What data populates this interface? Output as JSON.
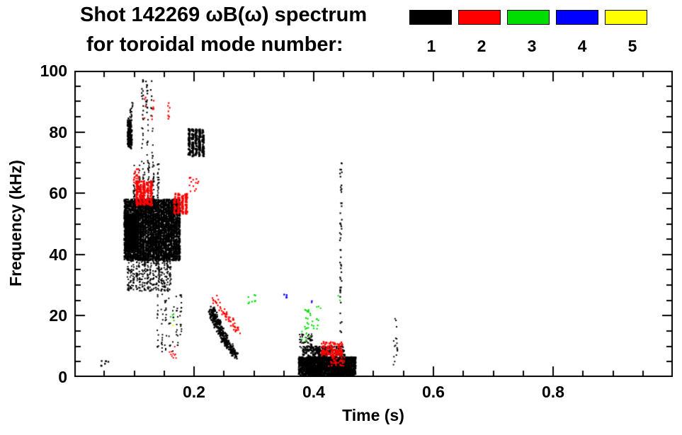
{
  "chart_data": {
    "type": "scatter",
    "title": "Shot 142269 ωB(ω) spectrum",
    "subtitle": "for toroidal mode number:",
    "xlabel": "Time (s)",
    "ylabel": "Frequency (kHz)",
    "xlim": [
      0.0,
      1.0
    ],
    "ylim": [
      0,
      100
    ],
    "grid": false,
    "xticks": {
      "major": [
        0.2,
        0.4,
        0.6,
        0.8
      ],
      "labels": [
        "0.2",
        "0.4",
        "0.6",
        "0.8"
      ],
      "minor_step": 0.05
    },
    "yticks": {
      "major": [
        0,
        20,
        40,
        60,
        80,
        100
      ],
      "labels": [
        "0",
        "20",
        "40",
        "60",
        "80",
        "100"
      ],
      "minor_step": 5
    },
    "legend": {
      "position": "top-right",
      "entries": [
        {
          "label": "1",
          "color": "#000000"
        },
        {
          "label": "2",
          "color": "#ff0000"
        },
        {
          "label": "3",
          "color": "#00dd00"
        },
        {
          "label": "4",
          "color": "#0000ff"
        },
        {
          "label": "5",
          "color": "#ffff00"
        }
      ]
    },
    "series": [
      {
        "name": "toroidal mode n=1",
        "color": "#000000",
        "clusters": [
          {
            "shape": "blob",
            "x": [
              0.041,
              0.057
            ],
            "y": [
              3,
              5.5
            ],
            "n": 7,
            "r": 1.2
          },
          {
            "shape": "line",
            "from": [
              0.0925,
              75
            ],
            "to": [
              0.0925,
              84
            ],
            "n": 130,
            "jx": 0.0035,
            "jy": 0.8,
            "r": 1.3
          },
          {
            "shape": "line",
            "from": [
              0.094,
              84
            ],
            "to": [
              0.096,
              89
            ],
            "n": 18,
            "jx": 0.002,
            "jy": 1.2,
            "r": 1
          },
          {
            "shape": "blob",
            "x": [
              0.114,
              0.128
            ],
            "y": [
              85,
              97
            ],
            "n": 34,
            "vstripes": 3,
            "r": 1.1
          },
          {
            "shape": "blob",
            "x": [
              0.114,
              0.131
            ],
            "y": [
              70,
              85
            ],
            "n": 28,
            "vstripes": 3,
            "r": 1
          },
          {
            "shape": "blob",
            "x": [
              0.085,
              0.175
            ],
            "y": [
              38,
              58
            ],
            "n": 3800,
            "vstripes": 22,
            "r": 1.2
          },
          {
            "shape": "blob",
            "x": [
              0.086,
              0.106
            ],
            "y": [
              41,
              53
            ],
            "n": 1400,
            "r": 1.5
          },
          {
            "shape": "blob",
            "x": [
              0.09,
              0.16
            ],
            "y": [
              28,
              40
            ],
            "n": 420,
            "vstripes": 16,
            "r": 1
          },
          {
            "shape": "blob",
            "x": [
              0.1,
              0.14
            ],
            "y": [
              58,
              70
            ],
            "n": 110,
            "vstripes": 6,
            "r": 1
          },
          {
            "shape": "blob",
            "x": [
              0.192,
              0.215
            ],
            "y": [
              72,
              81
            ],
            "n": 260,
            "vstripes": 5,
            "r": 1.3
          },
          {
            "shape": "blob",
            "x": [
              0.14,
              0.178
            ],
            "y": [
              8,
              27
            ],
            "n": 85,
            "vstripes": 7,
            "r": 1
          },
          {
            "shape": "line",
            "from": [
              0.228,
              22
            ],
            "to": [
              0.252,
              12
            ],
            "n": 200,
            "jx": 0.005,
            "jy": 1.6,
            "r": 1.2
          },
          {
            "shape": "line",
            "from": [
              0.252,
              12
            ],
            "to": [
              0.27,
              7
            ],
            "n": 120,
            "jx": 0.004,
            "jy": 1.2,
            "r": 1.1
          },
          {
            "shape": "blob",
            "x": [
              0.375,
              0.47
            ],
            "y": [
              0.5,
              6.5
            ],
            "n": 1600,
            "r": 1.3
          },
          {
            "shape": "blob",
            "x": [
              0.382,
              0.452
            ],
            "y": [
              5,
              10
            ],
            "n": 330,
            "r": 1.2
          },
          {
            "shape": "blob",
            "x": [
              0.376,
              0.4
            ],
            "y": [
              9,
              14
            ],
            "n": 55,
            "r": 1
          },
          {
            "shape": "line",
            "from": [
              0.4455,
              70
            ],
            "to": [
              0.4455,
              14
            ],
            "n": 50,
            "jx": 0.0018,
            "jy": 1.5,
            "r": 1.1
          },
          {
            "shape": "blob",
            "x": [
              0.532,
              0.54
            ],
            "y": [
              1.5,
              13
            ],
            "n": 14,
            "r": 1
          },
          {
            "shape": "blob",
            "x": [
              0.534,
              0.539
            ],
            "y": [
              14,
              21
            ],
            "n": 3,
            "r": 1
          }
        ]
      },
      {
        "name": "toroidal mode n=2",
        "color": "#ff0000",
        "clusters": [
          {
            "shape": "blob",
            "x": [
              0.105,
              0.128
            ],
            "y": [
              56,
              64
            ],
            "n": 240,
            "vstripes": 5,
            "r": 1.3
          },
          {
            "shape": "blob",
            "x": [
              0.099,
              0.109
            ],
            "y": [
              63,
              68
            ],
            "n": 26,
            "r": 1.1
          },
          {
            "shape": "blob",
            "x": [
              0.168,
              0.187
            ],
            "y": [
              53,
              60
            ],
            "n": 150,
            "vstripes": 4,
            "r": 1.3
          },
          {
            "shape": "blob",
            "x": [
              0.118,
              0.158
            ],
            "y": [
              84,
              92
            ],
            "n": 18,
            "vstripes": 4,
            "r": 1.1
          },
          {
            "shape": "blob",
            "x": [
              0.192,
              0.208
            ],
            "y": [
              60,
              66
            ],
            "n": 14,
            "r": 1.1
          },
          {
            "shape": "line",
            "from": [
              0.232,
              26
            ],
            "to": [
              0.274,
              15
            ],
            "n": 60,
            "jx": 0.004,
            "jy": 1.3,
            "r": 1.1
          },
          {
            "shape": "blob",
            "x": [
              0.413,
              0.448
            ],
            "y": [
              7,
              11.5
            ],
            "n": 130,
            "r": 1.2
          },
          {
            "shape": "blob",
            "x": [
              0.425,
              0.452
            ],
            "y": [
              3.5,
              7
            ],
            "n": 40,
            "r": 1.1
          },
          {
            "shape": "blob",
            "x": [
              0.158,
              0.17
            ],
            "y": [
              6,
              10
            ],
            "n": 10,
            "r": 1
          }
        ]
      },
      {
        "name": "toroidal mode n=3",
        "color": "#00dd00",
        "clusters": [
          {
            "shape": "blob",
            "x": [
              0.29,
              0.303
            ],
            "y": [
              24,
              27
            ],
            "n": 8,
            "r": 1.1
          },
          {
            "shape": "blob",
            "x": [
              0.385,
              0.408
            ],
            "y": [
              15,
              22
            ],
            "n": 26,
            "r": 1.1
          },
          {
            "shape": "blob",
            "x": [
              0.38,
              0.395
            ],
            "y": [
              11,
              15
            ],
            "n": 8,
            "r": 1
          },
          {
            "shape": "blob",
            "x": [
              0.405,
              0.412
            ],
            "y": [
              22,
              25
            ],
            "n": 3,
            "r": 1
          },
          {
            "shape": "blob",
            "x": [
              0.158,
              0.168
            ],
            "y": [
              18,
              21
            ],
            "n": 4,
            "r": 1
          },
          {
            "shape": "blob",
            "x": [
              0.44,
              0.447
            ],
            "y": [
              24,
              27
            ],
            "n": 2,
            "r": 1
          }
        ]
      },
      {
        "name": "toroidal mode n=4",
        "color": "#0000ff",
        "clusters": [
          {
            "shape": "blob",
            "x": [
              0.35,
              0.356
            ],
            "y": [
              25.5,
              27.5
            ],
            "n": 4,
            "r": 1.2
          },
          {
            "shape": "blob",
            "x": [
              0.392,
              0.397
            ],
            "y": [
              24,
              25.5
            ],
            "n": 2,
            "r": 1.1
          }
        ]
      },
      {
        "name": "toroidal mode n=5",
        "color": "#ffff00",
        "clusters": [
          {
            "shape": "blob",
            "x": [
              0.16,
              0.166
            ],
            "y": [
              16,
              18
            ],
            "n": 2,
            "r": 1
          }
        ]
      }
    ]
  }
}
